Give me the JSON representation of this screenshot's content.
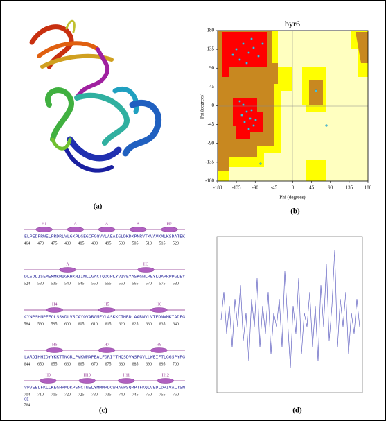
{
  "panels": {
    "a": {
      "label": "(a)"
    },
    "b": {
      "label": "(b)",
      "title": "byr6",
      "x_label": "Phi (degrees)",
      "y_label": "Psi (degrees)",
      "xticks": [
        -180,
        -135,
        -90,
        -45,
        0,
        45,
        90,
        135,
        180
      ],
      "yticks": [
        -180,
        -135,
        -90,
        -45,
        0,
        45,
        90,
        135,
        180
      ]
    },
    "c": {
      "label": "(c)",
      "rows": [
        {
          "structure_labels": [
            "H1",
            "A",
            "A",
            "A",
            "H2"
          ],
          "sequence": "ELPEDPRWELPRDRLVLGKPLGEGCFGQVVLAEAIGLDKDKPNRVTKVAVKMLKSDATEK",
          "numbers": [
            464,
            470,
            475,
            480,
            485,
            490,
            495,
            500,
            505,
            510,
            515,
            520
          ]
        },
        {
          "structure_labels": [
            "A",
            "H3"
          ],
          "sequence": "DLSDLISEMEMMKMIGKHKNIINLLGACTQDGPLYVIVEYASKGNLREYLQARRPPGLEY",
          "numbers": [
            524,
            530,
            535,
            540,
            545,
            550,
            555,
            560,
            565,
            570,
            575,
            580
          ]
        },
        {
          "structure_labels": [
            "H4",
            "H5",
            "H6"
          ],
          "sequence": "CYNPSHNPEEQLSSKDLVSCAYQVARGMEYLASKKCIHRDLAARNVLVTEDNVMKIADFG",
          "numbers": [
            584,
            590,
            595,
            600,
            605,
            610,
            615,
            620,
            625,
            630,
            635,
            640
          ]
        },
        {
          "structure_labels": [
            "H6",
            "H7",
            "H8"
          ],
          "sequence": "LARDIHHIDYYKKTTNGRLPVKWMAPEALFDRIYTHQSDVWSFGVLLWEIFTLGGSPYPG",
          "numbers": [
            644,
            650,
            655,
            660,
            665,
            670,
            675,
            680,
            685,
            690,
            695,
            700
          ]
        },
        {
          "structure_labels": [
            "H9",
            "H10",
            "H11",
            "H12"
          ],
          "sequence": "VPVEELFKLLKEGHRMDKPSNCTNELYMMMRDCWHAVPSQRPTFKQLVEDLDRIVALTSN",
          "numbers": [
            704,
            710,
            715,
            720,
            725,
            730,
            735,
            740,
            745,
            750,
            755,
            760
          ]
        }
      ],
      "tail": {
        "sequence": "QE",
        "number": 764
      }
    },
    "d": {
      "label": "(d)"
    }
  }
}
